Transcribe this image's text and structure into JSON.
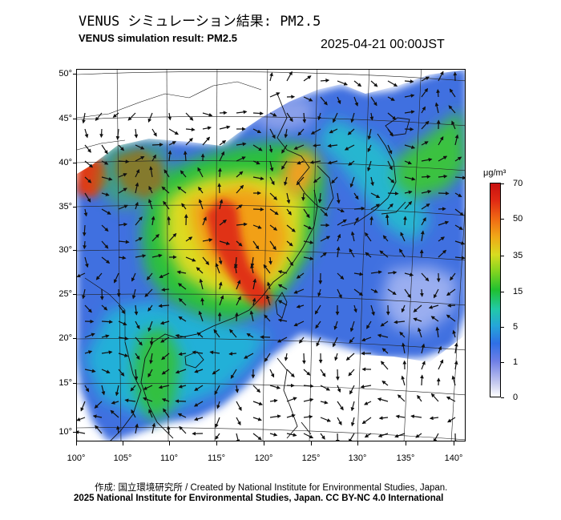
{
  "header": {
    "title_jp": "VENUS シミュレーション結果: PM2.5",
    "title_en": "VENUS simulation result: PM2.5",
    "timestamp": "2025-04-21 00:00JST"
  },
  "map": {
    "lat_ticks": [
      "50°",
      "45°",
      "40°",
      "35°",
      "30°",
      "25°",
      "20°",
      "15°",
      "10°"
    ],
    "lon_ticks": [
      "100°",
      "105°",
      "110°",
      "115°",
      "120°",
      "125°",
      "130°",
      "135°",
      "140°"
    ],
    "layers": [
      "pm2.5-concentration-field",
      "wind-vector-arrows",
      "coastlines",
      "lat-lon-graticule"
    ]
  },
  "colorbar": {
    "unit": "μg/m³",
    "labels": [
      "70",
      "50",
      "35",
      "15",
      "5",
      "1",
      "0"
    ],
    "colors": [
      "#c81010",
      "#f06a14",
      "#d8dc20",
      "#20c030",
      "#22c9a8",
      "#2f6fe6",
      "#ffffff"
    ]
  },
  "footer": {
    "credit": "作成: 国立環境研究所 / Created by National Institute for Environmental Studies, Japan.",
    "license": "2025 National Institute for Environmental Studies, Japan. CC BY-NC 4.0 International"
  }
}
